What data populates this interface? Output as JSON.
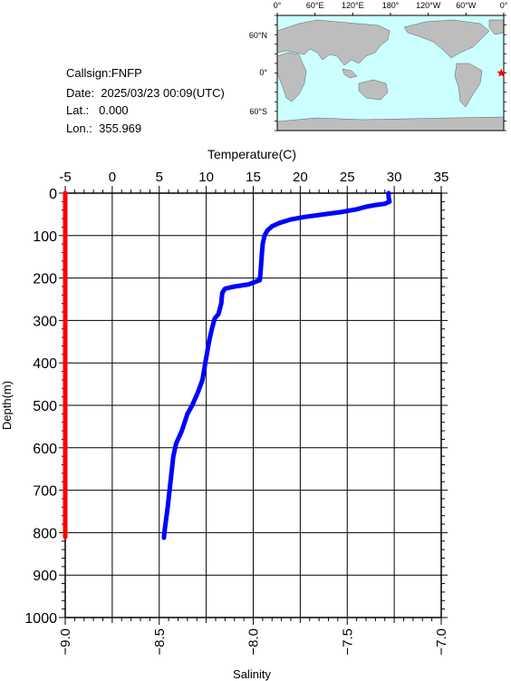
{
  "station": {
    "callsign": "Callsign:FNFP",
    "date": "Date:  2025/03/23 00:09(UTC)",
    "lat": "Lat.:   0.000",
    "lon": "Lon.:  355.969"
  },
  "map": {
    "lon_ticks": [
      "0°",
      "60°E",
      "120°E",
      "180°",
      "120°W",
      "60°W",
      "0°"
    ],
    "lat_ticks": [
      "60°N",
      "0°",
      "60°S"
    ],
    "ocean_color": "#ccffff",
    "land_color": "#bdbdbd",
    "marker_color": "#ff0000",
    "marker_lon": 355.969,
    "marker_lat": 0.0
  },
  "chart_data": {
    "type": "line",
    "title": "",
    "ylabel": "Depth(m)",
    "ylim": [
      0,
      1000
    ],
    "y_inverted": true,
    "y_ticks": [
      0,
      100,
      200,
      300,
      400,
      500,
      600,
      700,
      800,
      900,
      1000
    ],
    "temperature_axis": {
      "label": "Temperature(C)",
      "position": "top",
      "range": [
        -5,
        35
      ],
      "ticks": [
        -5,
        0,
        5,
        10,
        15,
        20,
        25,
        30,
        35
      ]
    },
    "salinity_axis": {
      "label": "Salinity",
      "position": "bottom",
      "range": [
        -9.0,
        -7.0
      ],
      "ticks": [
        "-9.0",
        "-8.5",
        "-8.0",
        "-7.5",
        "-7.0"
      ]
    },
    "grid": true,
    "series": [
      {
        "axis": "temperature",
        "color": "#0000ff",
        "points": [
          [
            29.4,
            0
          ],
          [
            29.4,
            10
          ],
          [
            29.5,
            20
          ],
          [
            29.0,
            25
          ],
          [
            28.0,
            28
          ],
          [
            27.0,
            32
          ],
          [
            26.0,
            38
          ],
          [
            24.5,
            44
          ],
          [
            22.5,
            50
          ],
          [
            20.5,
            56
          ],
          [
            19.0,
            62
          ],
          [
            17.8,
            70
          ],
          [
            17.0,
            78
          ],
          [
            16.5,
            88
          ],
          [
            16.2,
            100
          ],
          [
            16.0,
            120
          ],
          [
            15.9,
            150
          ],
          [
            15.8,
            180
          ],
          [
            15.7,
            205
          ],
          [
            14.5,
            215
          ],
          [
            13.0,
            220
          ],
          [
            12.0,
            225
          ],
          [
            11.7,
            235
          ],
          [
            11.6,
            260
          ],
          [
            11.3,
            285
          ],
          [
            10.9,
            295
          ],
          [
            10.6,
            320
          ],
          [
            10.3,
            350
          ],
          [
            9.9,
            400
          ],
          [
            9.6,
            440
          ],
          [
            9.1,
            470
          ],
          [
            8.5,
            500
          ],
          [
            8.0,
            520
          ],
          [
            7.4,
            560
          ],
          [
            6.8,
            590
          ],
          [
            6.5,
            620
          ],
          [
            6.2,
            680
          ],
          [
            5.9,
            740
          ],
          [
            5.6,
            790
          ],
          [
            5.5,
            812
          ]
        ]
      },
      {
        "axis": "salinity",
        "color": "#ff0000",
        "points": [
          [
            -9.0,
            0
          ],
          [
            -9.0,
            810
          ]
        ]
      }
    ]
  }
}
